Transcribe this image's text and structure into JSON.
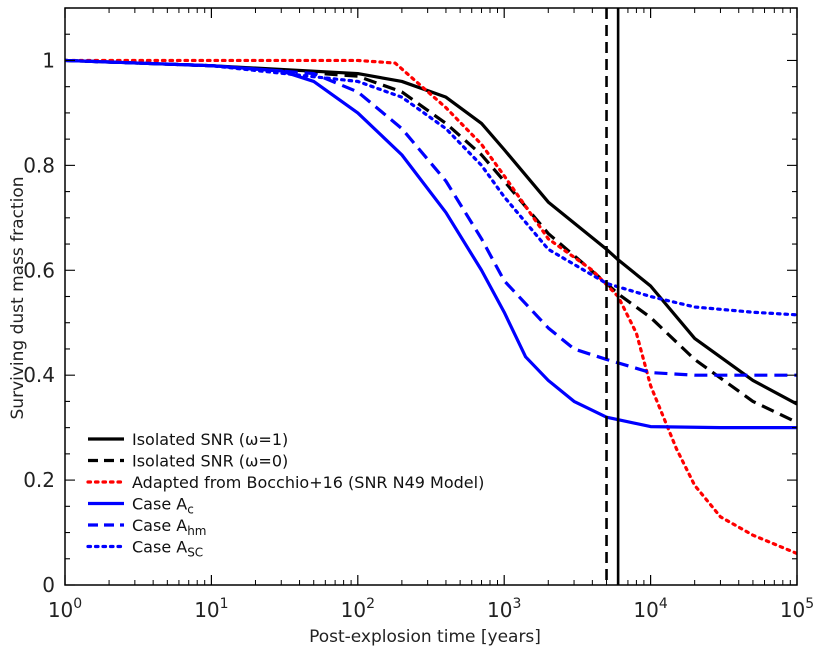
{
  "chart_data": {
    "type": "line",
    "xlabel": "Post-explosion time [years]",
    "ylabel": "Surviving dust mass fraction",
    "xscale": "log",
    "xlim": [
      1,
      100000
    ],
    "ylim": [
      0,
      1.1
    ],
    "x_ticks": [
      {
        "value": 1,
        "base": "10",
        "exp": "0"
      },
      {
        "value": 10,
        "base": "10",
        "exp": "1"
      },
      {
        "value": 100,
        "base": "10",
        "exp": "2"
      },
      {
        "value": 1000,
        "base": "10",
        "exp": "3"
      },
      {
        "value": 10000,
        "base": "10",
        "exp": "4"
      },
      {
        "value": 100000,
        "base": "10",
        "exp": "5"
      }
    ],
    "y_ticks": [
      {
        "value": 0,
        "label": "0"
      },
      {
        "value": 0.2,
        "label": "0.2"
      },
      {
        "value": 0.4,
        "label": "0.4"
      },
      {
        "value": 0.6,
        "label": "0.6"
      },
      {
        "value": 0.8,
        "label": "0.8"
      },
      {
        "value": 1.0,
        "label": "1"
      }
    ],
    "grid": false,
    "legend_position": "bottom-left",
    "vertical_lines": [
      {
        "x": 5000,
        "style": "dashed",
        "color": "#000000"
      },
      {
        "x": 6000,
        "style": "solid",
        "color": "#000000"
      }
    ],
    "series": [
      {
        "name": "Isolated SNR (ω=1)",
        "color": "#000000",
        "style": "solid",
        "points": [
          [
            1,
            1.0
          ],
          [
            10,
            0.99
          ],
          [
            100,
            0.975
          ],
          [
            200,
            0.96
          ],
          [
            400,
            0.93
          ],
          [
            700,
            0.88
          ],
          [
            1000,
            0.83
          ],
          [
            2000,
            0.73
          ],
          [
            5000,
            0.64
          ],
          [
            6000,
            0.62
          ],
          [
            10000,
            0.57
          ],
          [
            20000,
            0.47
          ],
          [
            50000,
            0.39
          ],
          [
            100000,
            0.345
          ]
        ]
      },
      {
        "name": "Isolated SNR (ω=0)",
        "color": "#000000",
        "style": "dashed",
        "points": [
          [
            1,
            1.0
          ],
          [
            10,
            0.99
          ],
          [
            100,
            0.97
          ],
          [
            200,
            0.94
          ],
          [
            400,
            0.88
          ],
          [
            700,
            0.82
          ],
          [
            1000,
            0.77
          ],
          [
            2000,
            0.67
          ],
          [
            5000,
            0.575
          ],
          [
            6000,
            0.555
          ],
          [
            10000,
            0.51
          ],
          [
            20000,
            0.43
          ],
          [
            50000,
            0.35
          ],
          [
            100000,
            0.31
          ]
        ]
      },
      {
        "name": "Adapted from Bocchio+16 (SNR N49 Model)",
        "color": "#ff0000",
        "style": "dotted",
        "points": [
          [
            1,
            1.0
          ],
          [
            10,
            1.0
          ],
          [
            100,
            1.0
          ],
          [
            180,
            0.995
          ],
          [
            250,
            0.96
          ],
          [
            400,
            0.91
          ],
          [
            700,
            0.84
          ],
          [
            1000,
            0.78
          ],
          [
            2000,
            0.66
          ],
          [
            4000,
            0.6
          ],
          [
            6000,
            0.55
          ],
          [
            8000,
            0.48
          ],
          [
            10000,
            0.38
          ],
          [
            15000,
            0.26
          ],
          [
            20000,
            0.19
          ],
          [
            30000,
            0.13
          ],
          [
            50000,
            0.095
          ],
          [
            100000,
            0.06
          ]
        ]
      },
      {
        "name": "Case A",
        "sub": "c",
        "color": "#0000ff",
        "style": "solid",
        "points": [
          [
            1,
            1.0
          ],
          [
            10,
            0.99
          ],
          [
            30,
            0.98
          ],
          [
            50,
            0.96
          ],
          [
            100,
            0.9
          ],
          [
            200,
            0.82
          ],
          [
            400,
            0.71
          ],
          [
            700,
            0.6
          ],
          [
            1000,
            0.52
          ],
          [
            1400,
            0.435
          ],
          [
            2000,
            0.39
          ],
          [
            3000,
            0.35
          ],
          [
            5000,
            0.32
          ],
          [
            10000,
            0.302
          ],
          [
            30000,
            0.3
          ],
          [
            100000,
            0.3
          ]
        ]
      },
      {
        "name": "Case A",
        "sub": "hm",
        "color": "#0000ff",
        "style": "dashed",
        "points": [
          [
            1,
            1.0
          ],
          [
            10,
            0.99
          ],
          [
            50,
            0.975
          ],
          [
            100,
            0.94
          ],
          [
            200,
            0.87
          ],
          [
            400,
            0.77
          ],
          [
            700,
            0.66
          ],
          [
            1000,
            0.58
          ],
          [
            2000,
            0.49
          ],
          [
            3000,
            0.45
          ],
          [
            5000,
            0.43
          ],
          [
            10000,
            0.405
          ],
          [
            20000,
            0.4
          ],
          [
            100000,
            0.4
          ]
        ]
      },
      {
        "name": "Case A",
        "sub": "SC",
        "color": "#0000ff",
        "style": "dotted",
        "points": [
          [
            1,
            1.0
          ],
          [
            10,
            0.99
          ],
          [
            100,
            0.96
          ],
          [
            200,
            0.93
          ],
          [
            400,
            0.87
          ],
          [
            700,
            0.8
          ],
          [
            1000,
            0.74
          ],
          [
            2000,
            0.64
          ],
          [
            5000,
            0.575
          ],
          [
            10000,
            0.55
          ],
          [
            20000,
            0.53
          ],
          [
            50000,
            0.52
          ],
          [
            100000,
            0.515
          ]
        ]
      }
    ]
  }
}
